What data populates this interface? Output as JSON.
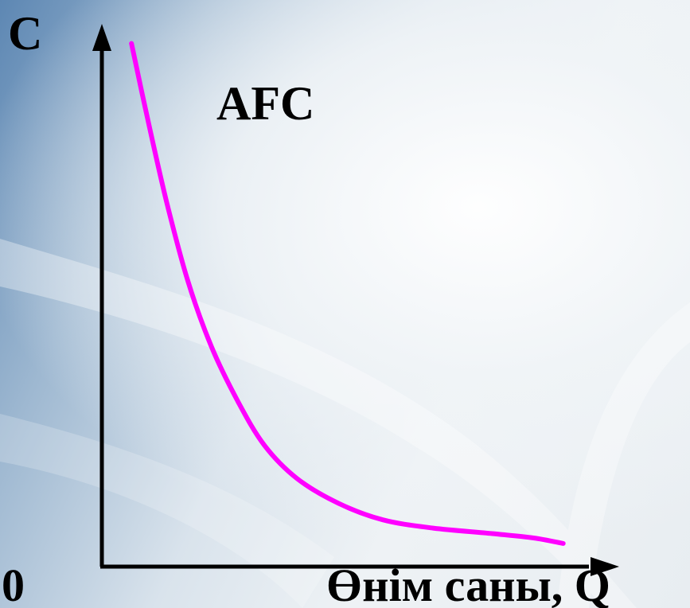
{
  "chart_data": {
    "type": "line",
    "ylabel": "C",
    "xlabel": "Өнім саны, Q",
    "origin_label": "0",
    "series": [
      {
        "name": "AFC",
        "color": "#ff00ff",
        "x": [
          1,
          1.6,
          2.2,
          2.9,
          3.7,
          4.6,
          5.5,
          6.6,
          8,
          9.5,
          11.2,
          13.2,
          14.6,
          15.6
        ],
        "y": [
          95,
          80,
          66,
          52,
          40,
          30,
          22,
          16,
          11.5,
          8.5,
          7,
          6,
          5.2,
          4.2
        ]
      }
    ],
    "xlim": [
      0,
      19
    ],
    "ylim": [
      0,
      100
    ],
    "grid": false,
    "axis_color": "#000000"
  }
}
